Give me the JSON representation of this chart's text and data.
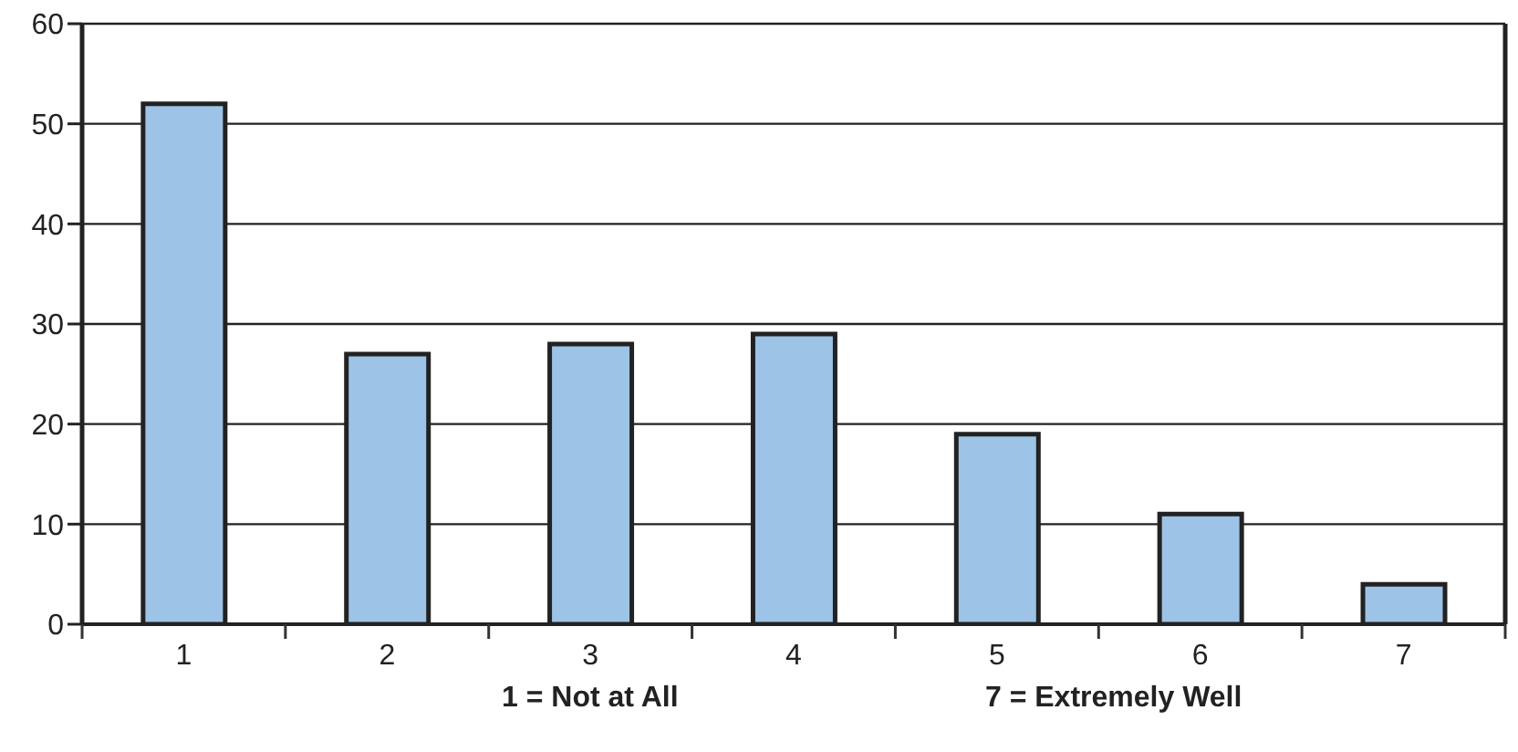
{
  "chart_data": {
    "type": "bar",
    "categories": [
      "1",
      "2",
      "3",
      "4",
      "5",
      "6",
      "7"
    ],
    "values": [
      52,
      27,
      28,
      29,
      19,
      11,
      4
    ],
    "color": "#9dc3e6",
    "ylim": [
      0,
      60
    ],
    "yticks": [
      0,
      10,
      20,
      30,
      40,
      50,
      60
    ],
    "grid": "y",
    "annotations": [
      "1 = Not at All",
      "7 = Extremely Well"
    ]
  }
}
